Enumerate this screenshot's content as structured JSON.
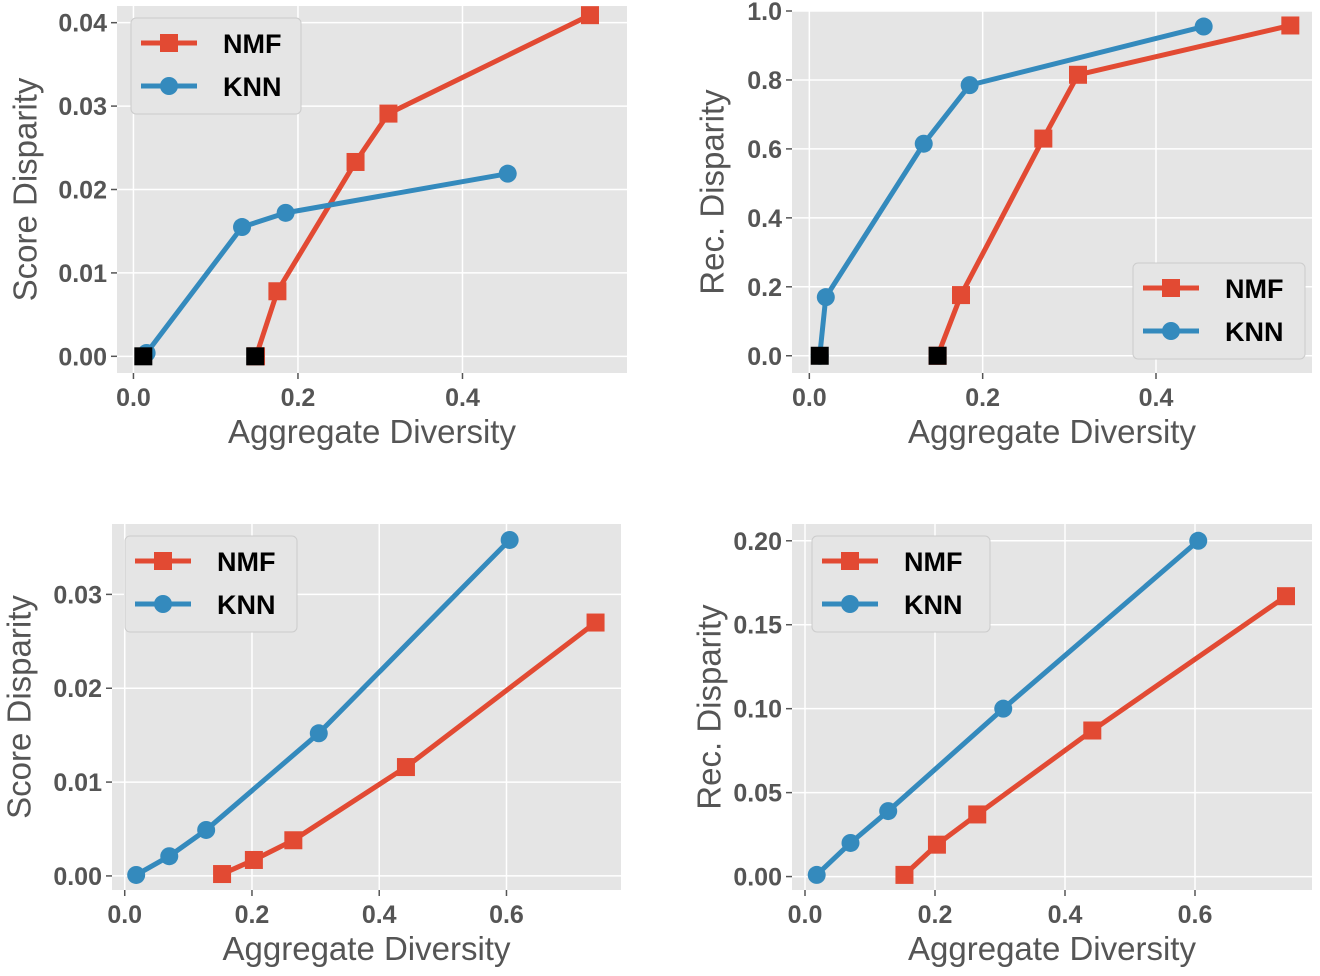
{
  "colors": {
    "NMF": "#e24a33",
    "KNN": "#348abd",
    "baseline": "#000000",
    "panel_bg": "#e5e5e5",
    "grid": "#ffffff"
  },
  "chart_data": [
    {
      "type": "line",
      "xlabel": "Aggregate Diversity",
      "ylabel": "Score Disparity",
      "xlim": [
        -0.02,
        0.6
      ],
      "ylim": [
        -0.002,
        0.042
      ],
      "xticks": [
        "0.0",
        "0.2",
        "0.4"
      ],
      "xtick_values": [
        0.0,
        0.2,
        0.4
      ],
      "yticks": [
        "0.00",
        "0.01",
        "0.02",
        "0.03",
        "0.04"
      ],
      "ytick_values": [
        0.0,
        0.01,
        0.02,
        0.03,
        0.04
      ],
      "grid": true,
      "legend": "top-left",
      "series": [
        {
          "name": "NMF",
          "marker": "square",
          "x": [
            0.149,
            0.175,
            0.27,
            0.31,
            0.555
          ],
          "y": [
            0.0,
            0.0078,
            0.0233,
            0.0291,
            0.0409
          ]
        },
        {
          "name": "KNN",
          "marker": "circle",
          "x": [
            0.016,
            0.132,
            0.185,
            0.455
          ],
          "y": [
            0.0004,
            0.0155,
            0.0172,
            0.0219
          ]
        }
      ],
      "baseline_points": {
        "marker": "black-square",
        "x": [
          0.012,
          0.148
        ],
        "y": [
          0.0,
          0.0
        ]
      }
    },
    {
      "type": "line",
      "xlabel": "Aggregate Diversity",
      "ylabel": "Rec. Disparity",
      "xlim": [
        -0.02,
        0.58
      ],
      "ylim": [
        -0.05,
        1.0
      ],
      "xticks": [
        "0.0",
        "0.2",
        "0.4"
      ],
      "xtick_values": [
        0.0,
        0.2,
        0.4
      ],
      "yticks": [
        "0.0",
        "0.2",
        "0.4",
        "0.6",
        "0.8",
        "1.0"
      ],
      "ytick_values": [
        0.0,
        0.2,
        0.4,
        0.6,
        0.8,
        1.0
      ],
      "grid": true,
      "legend": "bottom-right",
      "series": [
        {
          "name": "NMF",
          "marker": "square",
          "x": [
            0.148,
            0.175,
            0.27,
            0.31,
            0.555
          ],
          "y": [
            0.0,
            0.176,
            0.63,
            0.815,
            0.958
          ]
        },
        {
          "name": "KNN",
          "marker": "circle",
          "x": [
            0.012,
            0.019,
            0.132,
            0.185,
            0.455
          ],
          "y": [
            0.0,
            0.17,
            0.615,
            0.785,
            0.955
          ]
        }
      ],
      "baseline_points": {
        "marker": "black-square",
        "x": [
          0.012,
          0.148
        ],
        "y": [
          0.0,
          0.0
        ]
      }
    },
    {
      "type": "line",
      "xlabel": "Aggregate Diversity",
      "ylabel": "Score Disparity",
      "xlim": [
        -0.02,
        0.78
      ],
      "ylim": [
        -0.0015,
        0.0375
      ],
      "xticks": [
        "0.0",
        "0.2",
        "0.4",
        "0.6"
      ],
      "xtick_values": [
        0.0,
        0.2,
        0.4,
        0.6
      ],
      "yticks": [
        "0.00",
        "0.01",
        "0.02",
        "0.03"
      ],
      "ytick_values": [
        0.0,
        0.01,
        0.02,
        0.03
      ],
      "grid": true,
      "legend": "top-left",
      "series": [
        {
          "name": "NMF",
          "marker": "square",
          "x": [
            0.153,
            0.203,
            0.265,
            0.442,
            0.74
          ],
          "y": [
            0.0002,
            0.0017,
            0.0038,
            0.0116,
            0.027
          ]
        },
        {
          "name": "KNN",
          "marker": "circle",
          "x": [
            0.018,
            0.07,
            0.128,
            0.305,
            0.605
          ],
          "y": [
            0.0001,
            0.0021,
            0.0049,
            0.0152,
            0.0358
          ]
        }
      ]
    },
    {
      "type": "line",
      "xlabel": "Aggregate Diversity",
      "ylabel": "Rec. Disparity",
      "xlim": [
        -0.02,
        0.78
      ],
      "ylim": [
        -0.008,
        0.21
      ],
      "xticks": [
        "0.0",
        "0.2",
        "0.4",
        "0.6"
      ],
      "xtick_values": [
        0.0,
        0.2,
        0.4,
        0.6
      ],
      "yticks": [
        "0.00",
        "0.05",
        "0.10",
        "0.15",
        "0.20"
      ],
      "ytick_values": [
        0.0,
        0.05,
        0.1,
        0.15,
        0.2
      ],
      "grid": true,
      "legend": "top-left",
      "series": [
        {
          "name": "NMF",
          "marker": "square",
          "x": [
            0.153,
            0.203,
            0.265,
            0.442,
            0.74
          ],
          "y": [
            0.001,
            0.019,
            0.037,
            0.087,
            0.167
          ]
        },
        {
          "name": "KNN",
          "marker": "circle",
          "x": [
            0.018,
            0.07,
            0.128,
            0.305,
            0.605
          ],
          "y": [
            0.001,
            0.02,
            0.039,
            0.1,
            0.2
          ]
        }
      ]
    }
  ]
}
